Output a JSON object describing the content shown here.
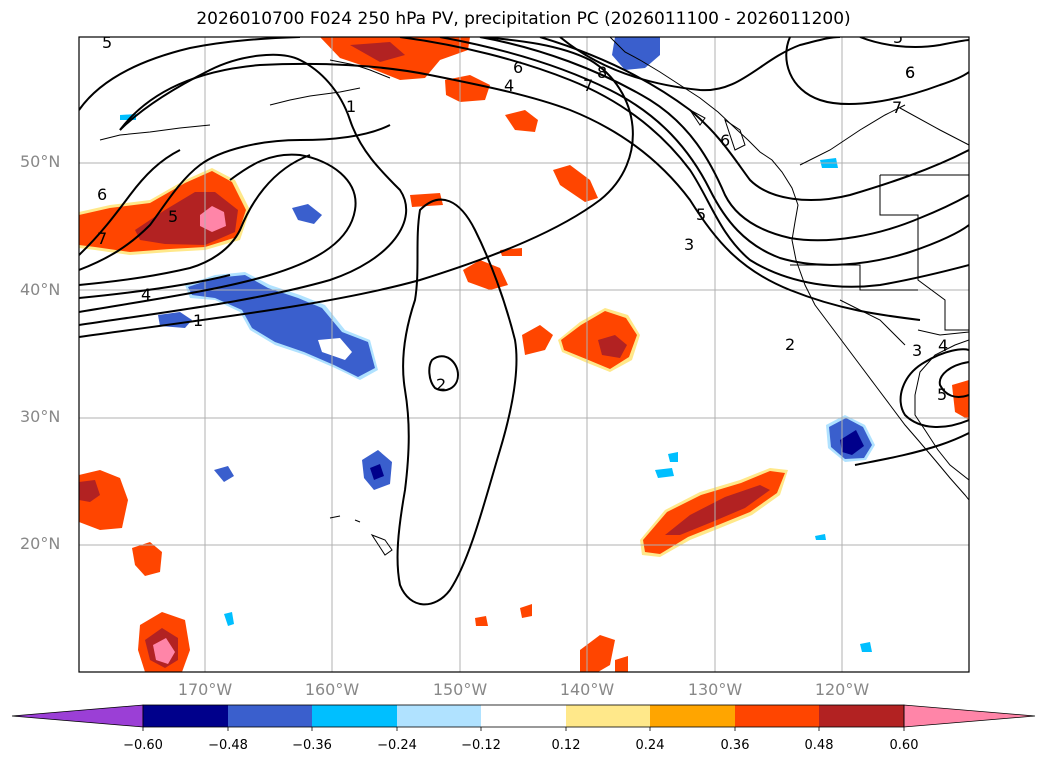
{
  "title": "2026010700 F024 250 hPa PV, precipitation PC (2026011100 - 2026011200)",
  "lat_labels": [
    "50°N",
    "40°N",
    "30°N",
    "20°N"
  ],
  "lon_labels": [
    "170°W",
    "160°W",
    "150°W",
    "140°W",
    "130°W",
    "120°W"
  ],
  "colorbar": {
    "ticks": [
      "−0.60",
      "−0.48",
      "−0.36",
      "−0.24",
      "−0.12",
      "0.12",
      "0.24",
      "0.36",
      "0.48",
      "0.60"
    ],
    "colors": [
      "#9b3fd6",
      "#00008b",
      "#3a5fcd",
      "#00bfff",
      "#b0e2ff",
      "#ffffff",
      "#ffe88a",
      "#ffa500",
      "#ff4500",
      "#b22222",
      "#ff85a8",
      "#ff85a8"
    ]
  },
  "contour_labels": [
    "5",
    "6",
    "7",
    "8",
    "6",
    "4",
    "1",
    "6",
    "7",
    "5",
    "6",
    "4",
    "1",
    "5",
    "3",
    "2",
    "2",
    "3",
    "4",
    "5",
    "6",
    "7",
    "5"
  ],
  "palette": {
    "pink": "#ff85a8",
    "darkred": "#b22222",
    "red": "#ff4500",
    "orange": "#ffa500",
    "yellow": "#ffe88a",
    "lightblue": "#b0e2ff",
    "cyan": "#00bfff",
    "blue": "#3a5fcd",
    "navy": "#00008b",
    "grid": "#b0b0b0"
  }
}
